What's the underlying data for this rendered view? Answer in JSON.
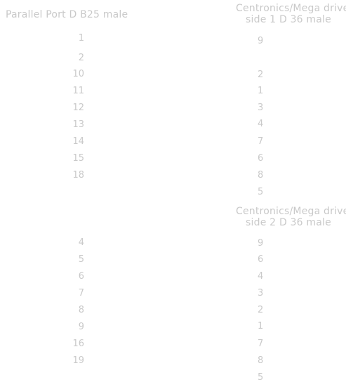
{
  "left_header": "Parallel Port D B25 male",
  "right_header_1": [
    "Centronics/Mega drive",
    "side 1 D 36 male"
  ],
  "right_header_2": [
    "Centronics/Mega drive",
    "side 2 D 36 male"
  ],
  "block1": {
    "left": [
      "1",
      "2",
      "10",
      "11",
      "12",
      "13",
      "14",
      "15",
      "18"
    ],
    "right": [
      "9",
      "",
      "2",
      "1",
      "3",
      "4",
      "7",
      "6",
      "8",
      "5"
    ]
  },
  "block2": {
    "left": [
      "4",
      "5",
      "6",
      "7",
      "8",
      "9",
      "16",
      "19"
    ],
    "right": [
      "9",
      "6",
      "4",
      "3",
      "2",
      "1",
      "7",
      "8",
      "5"
    ]
  }
}
